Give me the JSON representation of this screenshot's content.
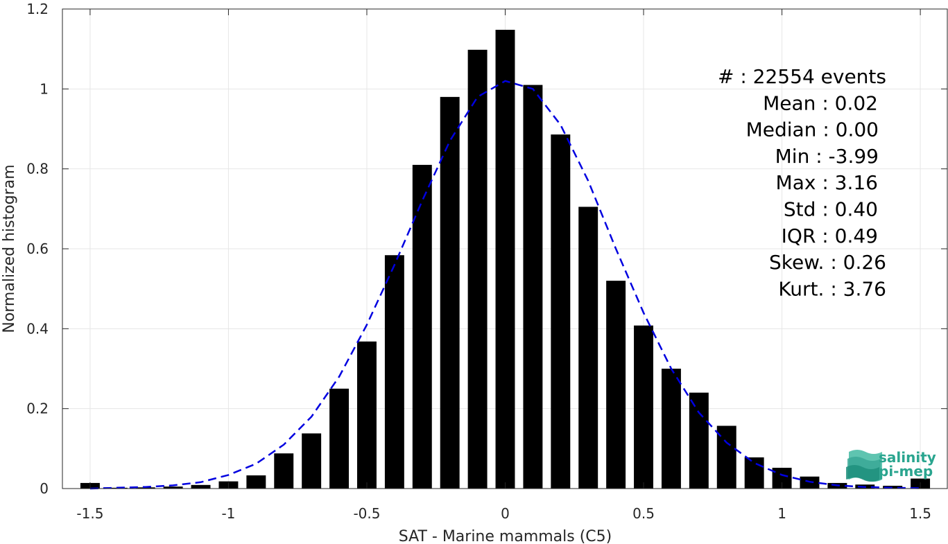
{
  "chart_data": {
    "type": "bar",
    "xlabel": "SAT - Marine mammals (C5)",
    "ylabel": "Normalized histogram",
    "xlim": [
      -1.6,
      1.6
    ],
    "ylim": [
      0,
      1.2
    ],
    "grid": true,
    "xticks": [
      -1.5,
      -1,
      -0.5,
      0,
      0.5,
      1,
      1.5
    ],
    "xtick_labels": [
      "-1.5",
      "-1",
      "-0.5",
      "0",
      "0.5",
      "1",
      "1.5"
    ],
    "yticks": [
      0,
      0.2,
      0.4,
      0.6,
      0.8,
      1,
      1.2
    ],
    "ytick_labels": [
      "0",
      "0.2",
      "0.4",
      "0.6",
      "0.8",
      "1",
      "1.2"
    ],
    "bar_width": 0.07,
    "bins": {
      "x": [
        -1.5,
        -1.4,
        -1.3,
        -1.2,
        -1.1,
        -1.0,
        -0.9,
        -0.8,
        -0.7,
        -0.6,
        -0.5,
        -0.4,
        -0.3,
        -0.2,
        -0.1,
        0.0,
        0.1,
        0.2,
        0.3,
        0.4,
        0.5,
        0.6,
        0.7,
        0.8,
        0.9,
        1.0,
        1.1,
        1.2,
        1.3,
        1.4,
        1.5
      ],
      "values": [
        0.014,
        0.002,
        0.003,
        0.005,
        0.009,
        0.018,
        0.033,
        0.088,
        0.138,
        0.25,
        0.368,
        0.584,
        0.81,
        0.98,
        1.098,
        1.148,
        1.01,
        0.886,
        0.705,
        0.52,
        0.408,
        0.3,
        0.24,
        0.157,
        0.078,
        0.052,
        0.03,
        0.014,
        0.01,
        0.007,
        0.025
      ]
    },
    "fit_curve": {
      "style": "dashed",
      "color": "#0000e0",
      "x": [
        -1.5,
        -1.4,
        -1.3,
        -1.2,
        -1.1,
        -1.0,
        -0.9,
        -0.8,
        -0.7,
        -0.6,
        -0.5,
        -0.4,
        -0.3,
        -0.2,
        -0.1,
        0.0,
        0.1,
        0.2,
        0.3,
        0.4,
        0.5,
        0.6,
        0.7,
        0.8,
        0.9,
        1.0,
        1.1,
        1.2,
        1.3,
        1.4,
        1.5
      ],
      "y": [
        0.0,
        0.002,
        0.004,
        0.008,
        0.016,
        0.034,
        0.062,
        0.11,
        0.18,
        0.28,
        0.41,
        0.56,
        0.72,
        0.87,
        0.98,
        1.02,
        1.0,
        0.91,
        0.77,
        0.6,
        0.44,
        0.3,
        0.19,
        0.115,
        0.064,
        0.034,
        0.017,
        0.008,
        0.004,
        0.002,
        0.001
      ]
    },
    "stats": [
      "#  : 22554 events",
      "Mean : 0.02",
      "Median : 0.00",
      "Min : -3.99",
      "Max : 3.16",
      "Std : 0.40",
      "IQR : 0.49",
      "Skew. : 0.26",
      "Kurt. : 3.76"
    ],
    "bar_color": "#000000"
  },
  "logo": {
    "line1": "salinity",
    "line2": "pi-mep",
    "color": "#2aa58f"
  }
}
